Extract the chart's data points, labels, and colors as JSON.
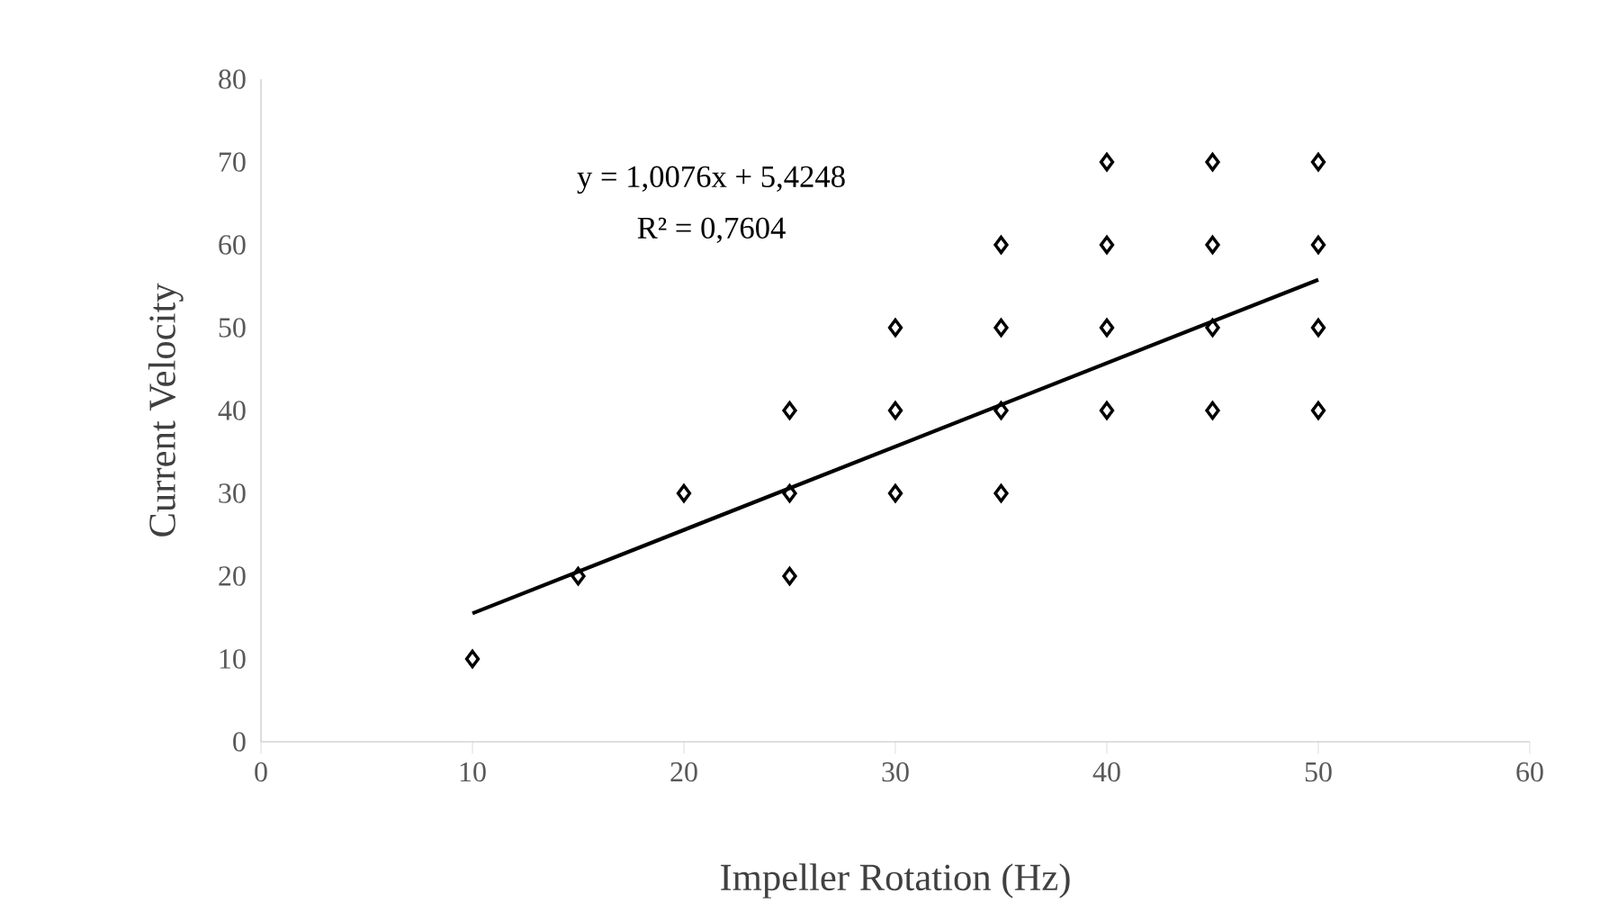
{
  "chart_data": {
    "type": "scatter",
    "xlabel": "Impeller Rotation (Hz)",
    "ylabel": "Current Velocity",
    "annotations": [
      "y = 1,0076x + 5,4248",
      "R² = 0,7604"
    ],
    "xlim": [
      0,
      60
    ],
    "xticks": [
      0,
      10,
      20,
      30,
      40,
      50,
      60
    ],
    "ylim": [
      0,
      80
    ],
    "yticks": [
      0,
      10,
      20,
      30,
      40,
      50,
      60,
      70,
      80
    ],
    "grid": false,
    "marker": "diamond",
    "series": [
      {
        "color": "#000000",
        "x": [
          10,
          15,
          20,
          25,
          25,
          25,
          30,
          30,
          30,
          35,
          35,
          35,
          35,
          40,
          40,
          40,
          40,
          45,
          45,
          45,
          45,
          50,
          50,
          50,
          50
        ],
        "values": [
          10,
          20,
          30,
          40,
          30,
          20,
          50,
          40,
          30,
          60,
          50,
          40,
          30,
          70,
          60,
          50,
          40,
          70,
          60,
          50,
          40,
          70,
          60,
          50,
          40
        ]
      },
      {
        "type": "line",
        "color": "#000000",
        "marker": "none",
        "line_style": "solid",
        "x": [
          10,
          50
        ],
        "values": [
          15.5,
          55.8
        ]
      }
    ]
  }
}
